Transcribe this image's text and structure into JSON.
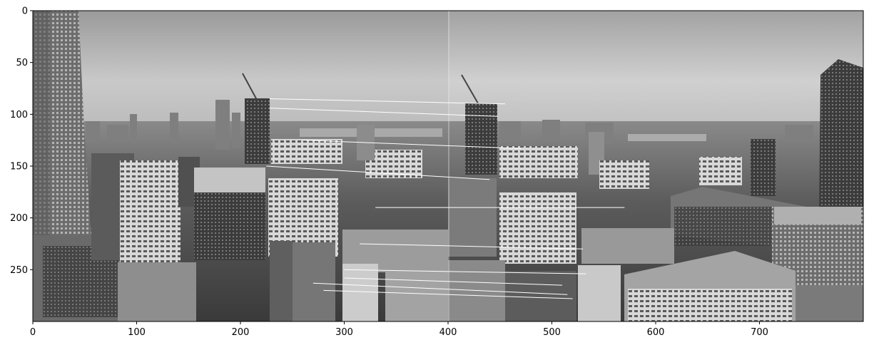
{
  "image_view": {
    "description_free": true,
    "x_ticks": [
      0,
      100,
      200,
      300,
      400,
      500,
      600,
      700
    ],
    "y_ticks": [
      0,
      50,
      100,
      150,
      200,
      250
    ],
    "x_range": [
      0,
      800
    ],
    "y_range": [
      300,
      0
    ],
    "seam_x": 400,
    "colors": {
      "axes": "#000000",
      "match_line": "#ffffff",
      "sky": "#c8c8c8"
    },
    "match_lines": [
      {
        "x1": 228,
        "y1": 85,
        "x2": 455,
        "y2": 90
      },
      {
        "x1": 228,
        "y1": 94,
        "x2": 448,
        "y2": 102
      },
      {
        "x1": 260,
        "y1": 125,
        "x2": 470,
        "y2": 133
      },
      {
        "x1": 225,
        "y1": 150,
        "x2": 440,
        "y2": 163
      },
      {
        "x1": 315,
        "y1": 225,
        "x2": 530,
        "y2": 230
      },
      {
        "x1": 300,
        "y1": 250,
        "x2": 533,
        "y2": 254
      },
      {
        "x1": 270,
        "y1": 263,
        "x2": 515,
        "y2": 274
      },
      {
        "x1": 280,
        "y1": 270,
        "x2": 520,
        "y2": 278
      },
      {
        "x1": 300,
        "y1": 258,
        "x2": 510,
        "y2": 265
      },
      {
        "x1": 330,
        "y1": 190,
        "x2": 570,
        "y2": 190
      }
    ]
  }
}
